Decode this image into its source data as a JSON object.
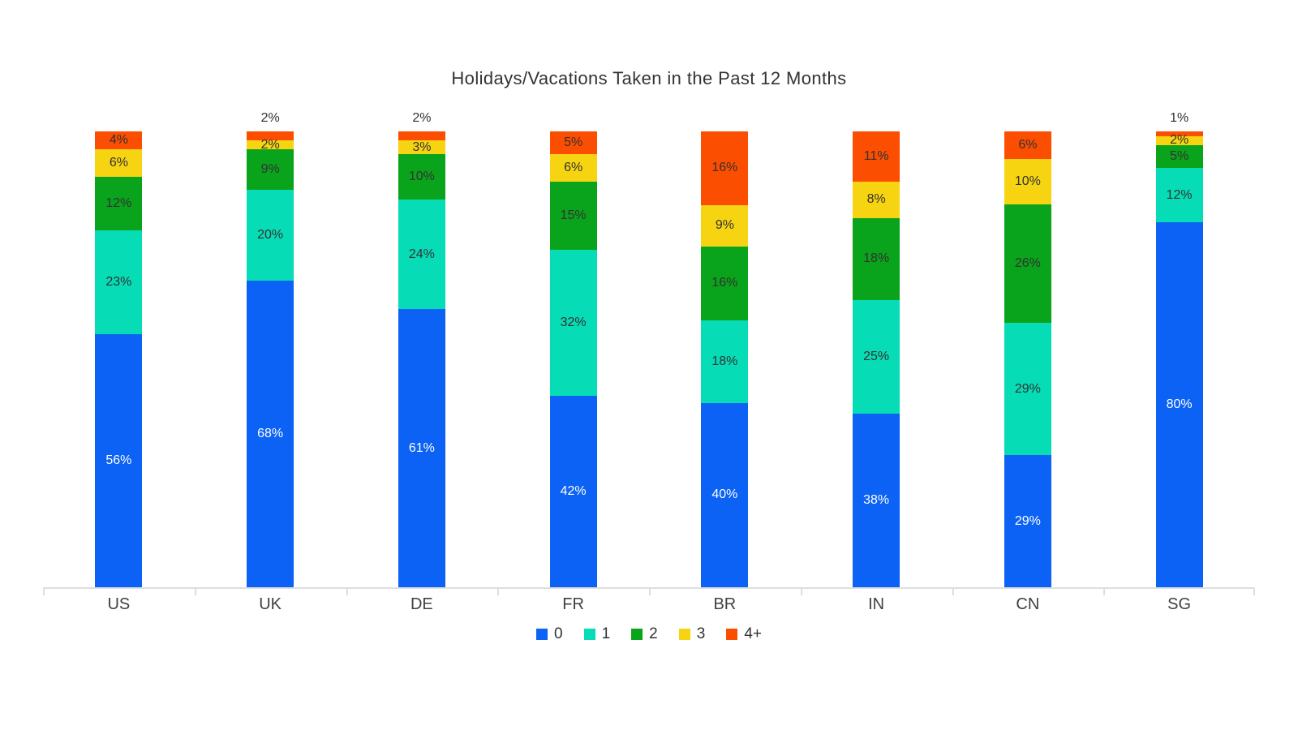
{
  "title": "Holidays/Vacations Taken in the Past 12 Months",
  "colors": {
    "series_0_blue": "#0b62f4",
    "series_1_teal": "#06dcb6",
    "series_2_green": "#09a41b",
    "series_3_yellow": "#f7d411",
    "series_4plus_orange": "#fc4e00",
    "axis_line": "#dedede",
    "label_dark": "#323232",
    "label_light": "#ffffff"
  },
  "chart_data": {
    "type": "bar",
    "stacked": true,
    "percent_stacked": true,
    "title": "Holidays/Vacations Taken in the Past 12 Months",
    "xlabel": "",
    "ylabel": "",
    "value_suffix": "%",
    "grid": false,
    "legend_position": "bottom",
    "small_top_label_threshold": 2,
    "categories": [
      "US",
      "UK",
      "DE",
      "FR",
      "BR",
      "IN",
      "CN",
      "SG"
    ],
    "series": [
      {
        "name": "0",
        "color": "#0b62f4",
        "label_color": "white",
        "values": [
          56,
          68,
          61,
          42,
          40,
          38,
          29,
          80
        ]
      },
      {
        "name": "1",
        "color": "#06dcb6",
        "label_color": "dark",
        "values": [
          23,
          20,
          24,
          32,
          18,
          25,
          29,
          12
        ]
      },
      {
        "name": "2",
        "color": "#09a41b",
        "label_color": "dark",
        "values": [
          12,
          9,
          10,
          15,
          16,
          18,
          26,
          5
        ]
      },
      {
        "name": "3",
        "color": "#f7d411",
        "label_color": "dark",
        "values": [
          6,
          2,
          3,
          6,
          9,
          8,
          10,
          2
        ]
      },
      {
        "name": "4+",
        "color": "#fc4e00",
        "label_color": "dark",
        "values": [
          4,
          2,
          2,
          5,
          16,
          11,
          6,
          1
        ]
      }
    ]
  }
}
